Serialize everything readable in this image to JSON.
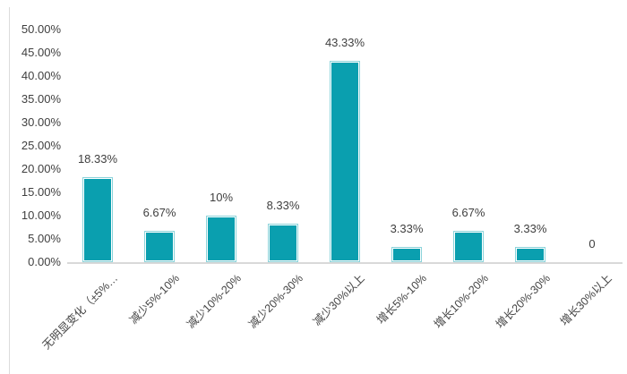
{
  "chart_data": {
    "type": "bar",
    "title": "",
    "xlabel": "",
    "ylabel": "",
    "legend": "none",
    "grid": false,
    "categories": [
      "无明显变化（±5%…",
      "减少5%-10%",
      "减少10%-20%",
      "减少20%-30%",
      "减少30%以上",
      "增长5%-10%",
      "增长10%-20%",
      "增长20%-30%",
      "增长30%以上"
    ],
    "values": [
      18.33,
      6.67,
      10,
      8.33,
      43.33,
      3.33,
      6.67,
      3.33,
      0
    ],
    "value_labels": [
      "18.33%",
      "6.67%",
      "10%",
      "8.33%",
      "43.33%",
      "3.33%",
      "6.67%",
      "3.33%",
      "0"
    ],
    "y_axis": {
      "tick_labels": [
        "50.00%",
        "45.00%",
        "40.00%",
        "35.00%",
        "30.00%",
        "25.00%",
        "20.00%",
        "15.00%",
        "10.00%",
        "5.00%",
        "0.00%"
      ],
      "min": 0,
      "max": 50,
      "step": 5
    },
    "colors": {
      "bar_fill": "#0a9faf",
      "bar_edge_highlight": "#8bd3da",
      "bar_inner_line": "#ffffff",
      "axis_line": "#d9d9d9",
      "label_text": "#3f3f3f"
    }
  }
}
